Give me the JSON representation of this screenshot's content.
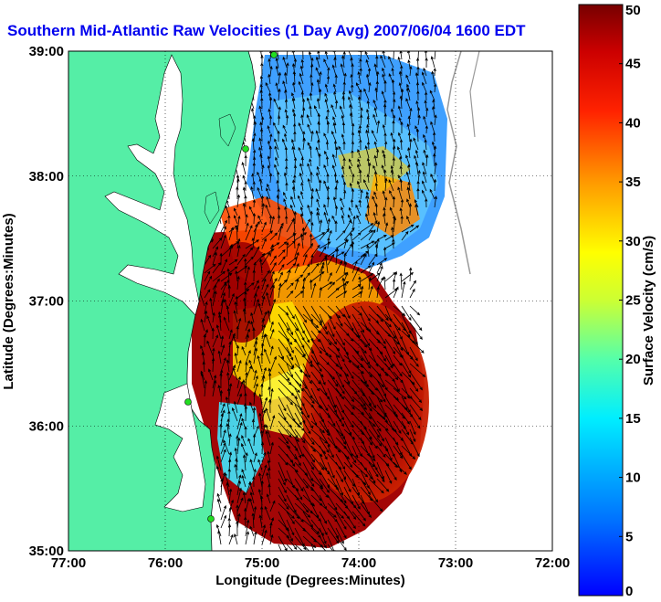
{
  "title": "Southern Mid-Atlantic Raw Velocities (1 Day Avg) 2007/06/04 1600 EDT",
  "map": {
    "xlabel": "Longitude (Degrees:Minutes)",
    "ylabel": "Latitude (Degrees:Minutes)",
    "x_ticks": [
      "77:00",
      "76:00",
      "75:00",
      "74:00",
      "73:00",
      "72:00"
    ],
    "y_ticks": [
      "39:00",
      "38:00",
      "37:00",
      "36:00",
      "35:00"
    ],
    "lon_range": [
      -77,
      -72
    ],
    "lat_range": [
      35,
      39
    ],
    "grid": "dotted",
    "land_color": "#55eea6",
    "water_color": "#ffffff",
    "site_marker_color": "#22dd22"
  },
  "colorbar": {
    "label": "Surface Velocity (cm/s)",
    "range": [
      0,
      50
    ],
    "ticks": [
      "0",
      "5",
      "10",
      "15",
      "20",
      "25",
      "30",
      "35",
      "40",
      "45",
      "50"
    ],
    "colormap": "jet"
  }
}
